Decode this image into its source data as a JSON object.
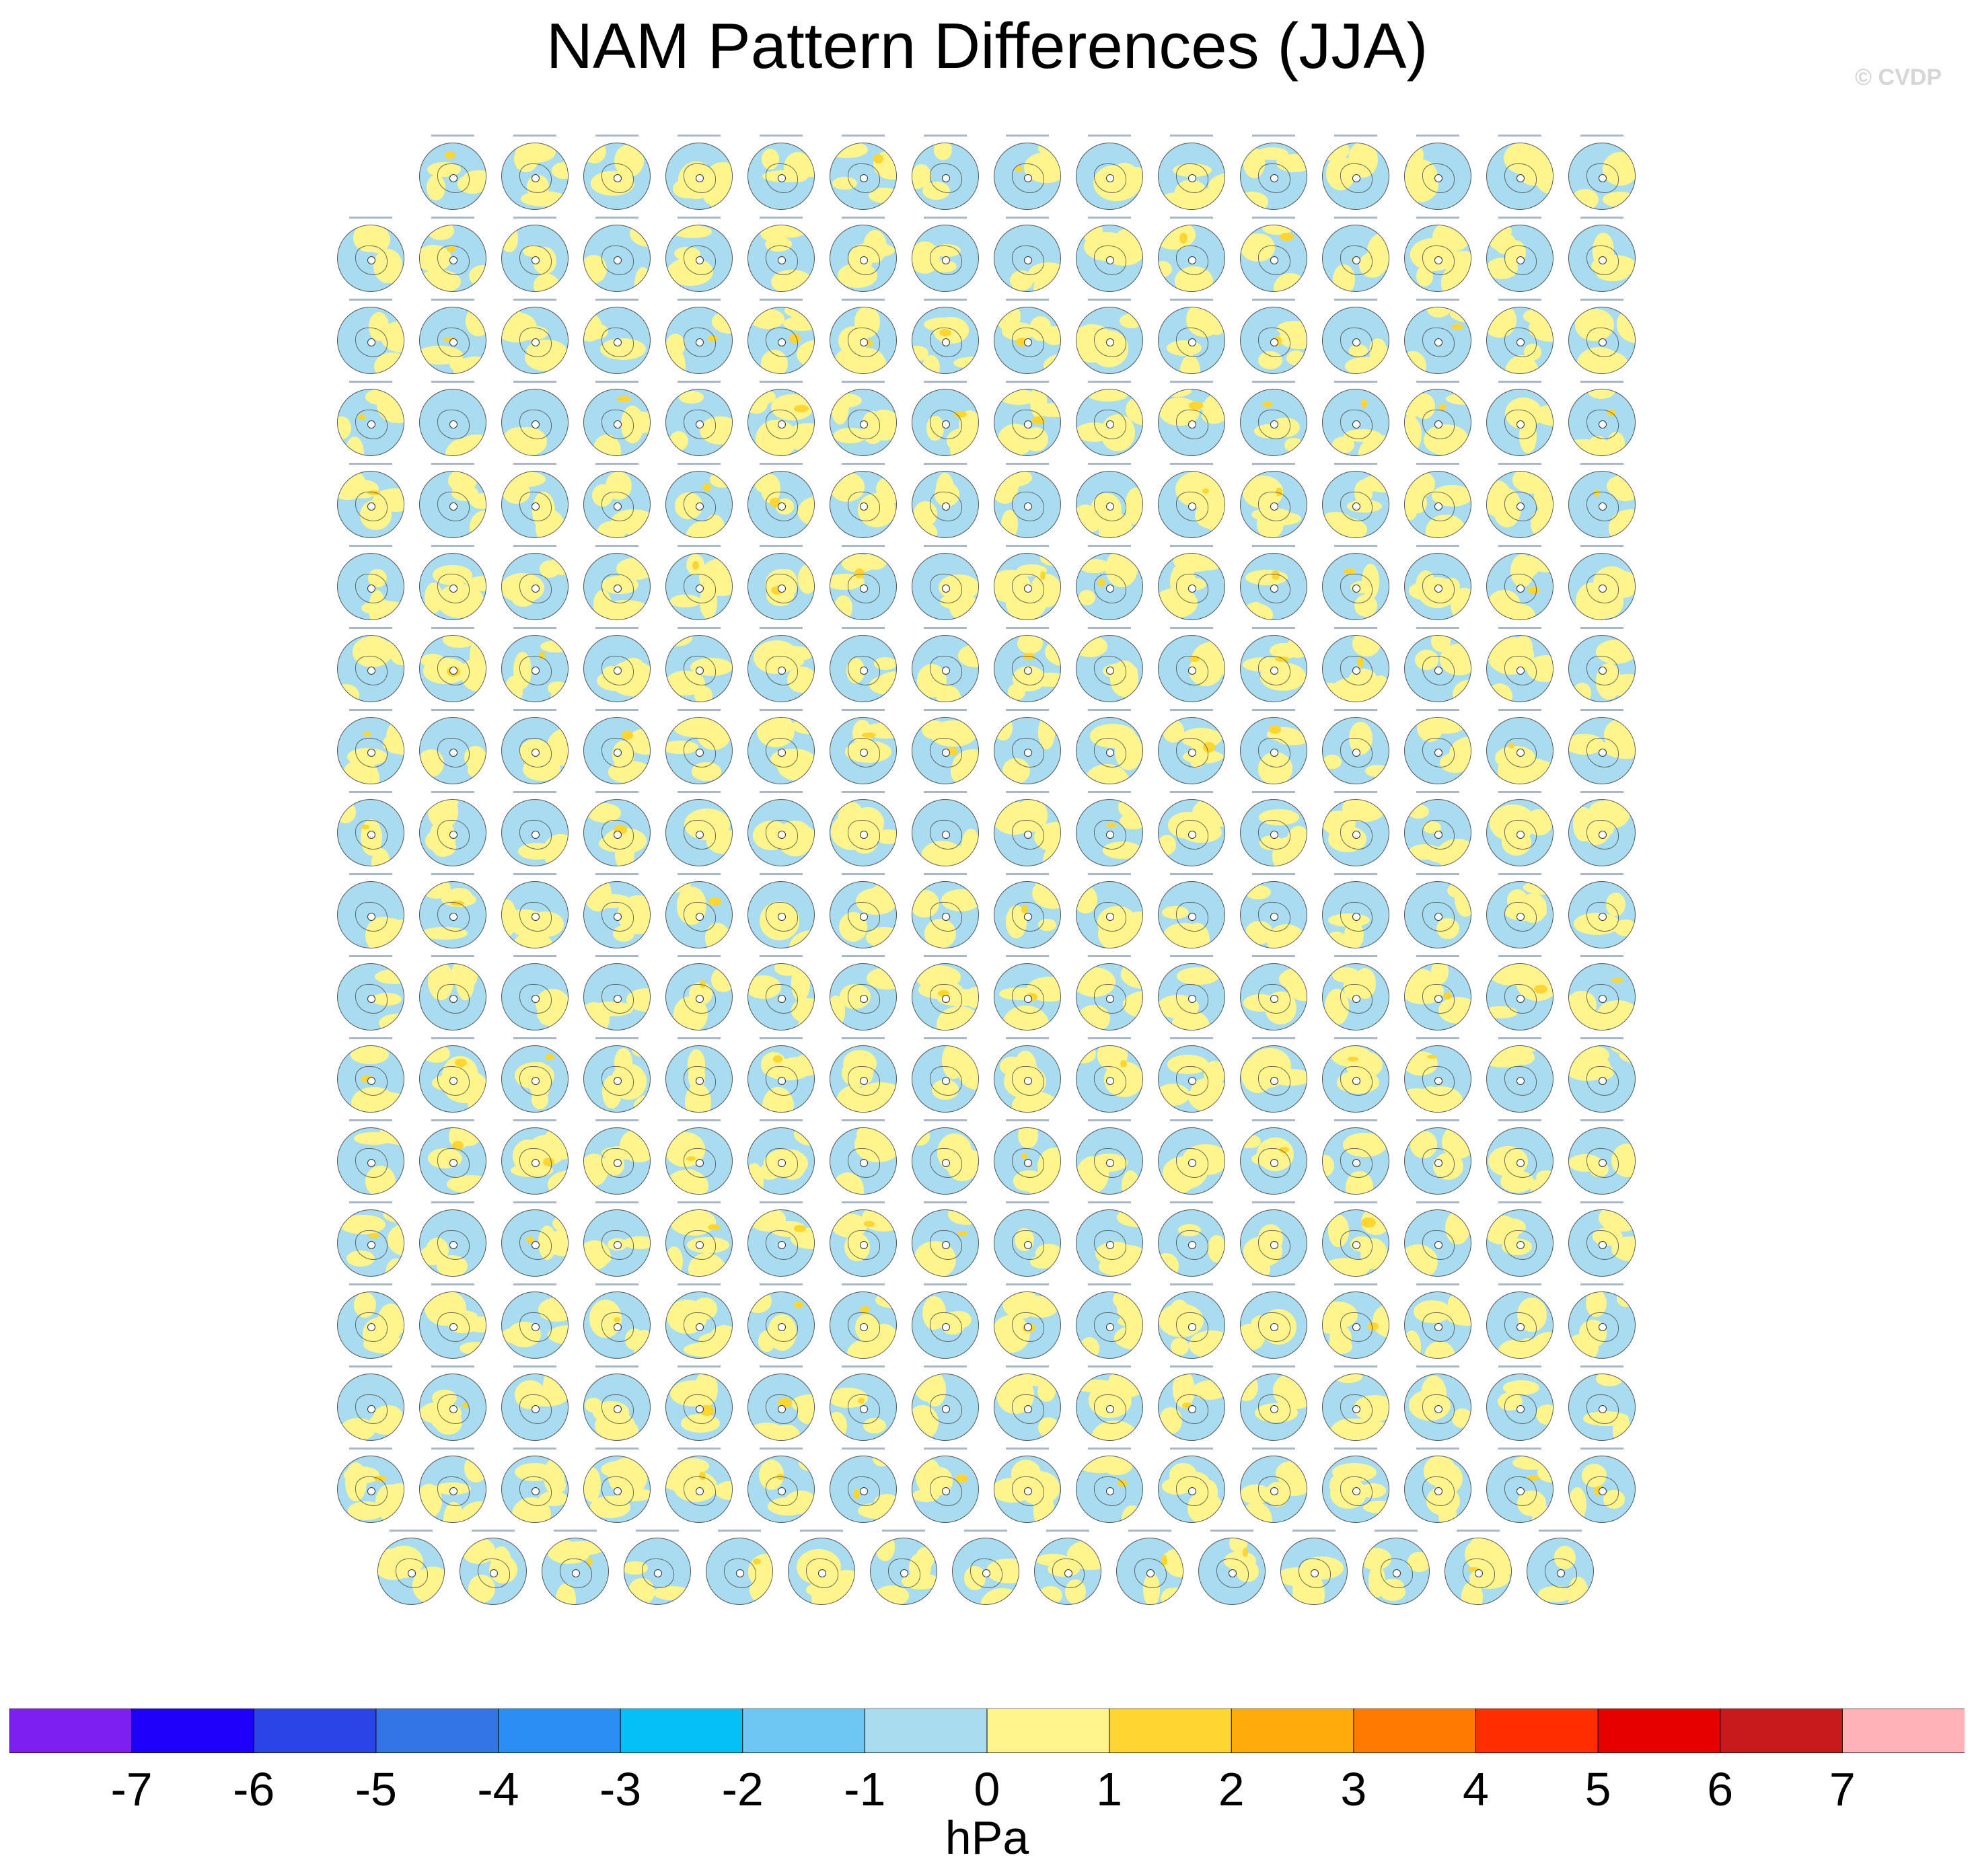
{
  "title": "NAM Pattern Differences (JJA)",
  "watermark": "© CVDP",
  "chart_data": {
    "type": "heatmap",
    "description_kind": "panel grid of polar-stereographic difference maps",
    "row_panel_counts": [
      15,
      16,
      16,
      16,
      16,
      16,
      16,
      16,
      16,
      16,
      16,
      16,
      16,
      16,
      16,
      16,
      16,
      15
    ],
    "projection": "north-polar-stereographic",
    "colorbar": {
      "unit": "hPa",
      "levels": [
        -7,
        -6,
        -5,
        -4,
        -3,
        -2,
        -1,
        0,
        1,
        2,
        3,
        4,
        5,
        6,
        7
      ],
      "colors": [
        "#7d1ff0",
        "#1e00fa",
        "#2b44e6",
        "#3374e6",
        "#2a8ff5",
        "#05bff7",
        "#6ec7f2",
        "#aadcf0",
        "#fff58c",
        "#ffd631",
        "#ffab0a",
        "#ff7a00",
        "#ff2d00",
        "#e60000",
        "#c8191c",
        "#ffb3b8"
      ]
    }
  }
}
